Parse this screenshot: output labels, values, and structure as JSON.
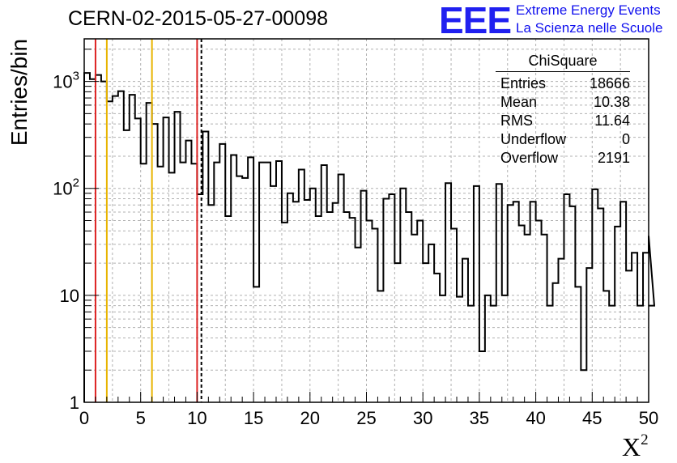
{
  "title": "CERN-02-2015-05-27-00098",
  "logo": {
    "mark": "EEE",
    "line1": "Extreme Energy Events",
    "line2": "La Scienza nelle Scuole"
  },
  "ylabel": "Entries/bin",
  "xlabel": "X",
  "xlabel_sup": "2",
  "stats": {
    "header": "ChiSquare",
    "rows": [
      {
        "label": "Entries",
        "value": "18666"
      },
      {
        "label": "Mean",
        "value": "10.38"
      },
      {
        "label": "RMS",
        "value": "11.64"
      },
      {
        "label": "Underflow",
        "value": "0"
      },
      {
        "label": "Overflow",
        "value": "2191"
      }
    ]
  },
  "chart_data": {
    "type": "histogram",
    "xlim": [
      0,
      50
    ],
    "ylim": [
      1,
      2500
    ],
    "yscale": "log",
    "bin_width": 0.5,
    "x_ticks": [
      "0",
      "5",
      "10",
      "15",
      "20",
      "25",
      "30",
      "35",
      "40",
      "45",
      "50"
    ],
    "y_ticks": [
      {
        "value": 1,
        "base": "1",
        "exp": ""
      },
      {
        "value": 10,
        "base": "10",
        "exp": ""
      },
      {
        "value": 100,
        "base": "10",
        "exp": "2"
      },
      {
        "value": 1000,
        "base": "10",
        "exp": "3"
      }
    ],
    "grid": true,
    "line_color": "#000000",
    "values": [
      1200,
      1050,
      1150,
      1000,
      650,
      730,
      810,
      350,
      750,
      450,
      170,
      630,
      400,
      160,
      460,
      140,
      520,
      175,
      280,
      170,
      88,
      340,
      70,
      175,
      260,
      55,
      205,
      130,
      125,
      195,
      12,
      175,
      175,
      105,
      180,
      48,
      90,
      75,
      150,
      78,
      100,
      55,
      165,
      60,
      73,
      135,
      60,
      53,
      28,
      95,
      50,
      42,
      11,
      80,
      88,
      20,
      100,
      60,
      37,
      50,
      20,
      30,
      16,
      10,
      112,
      42,
      9.7,
      22,
      8,
      105,
      3,
      10,
      8,
      110,
      10,
      70,
      75,
      45,
      37,
      75,
      50,
      37,
      8,
      13,
      22,
      88,
      68,
      12,
      2,
      18,
      98,
      65,
      11,
      8,
      44,
      75,
      17,
      25,
      8,
      25,
      36,
      8
    ],
    "vertical_lines": [
      {
        "x": 1,
        "color": "#dd2222",
        "style": "solid"
      },
      {
        "x": 2,
        "color": "#e8b400",
        "style": "solid"
      },
      {
        "x": 6,
        "color": "#e8b400",
        "style": "solid"
      },
      {
        "x": 10,
        "color": "#dd2222",
        "style": "solid"
      },
      {
        "x": 10.38,
        "color": "#000000",
        "style": "dashed"
      }
    ]
  }
}
